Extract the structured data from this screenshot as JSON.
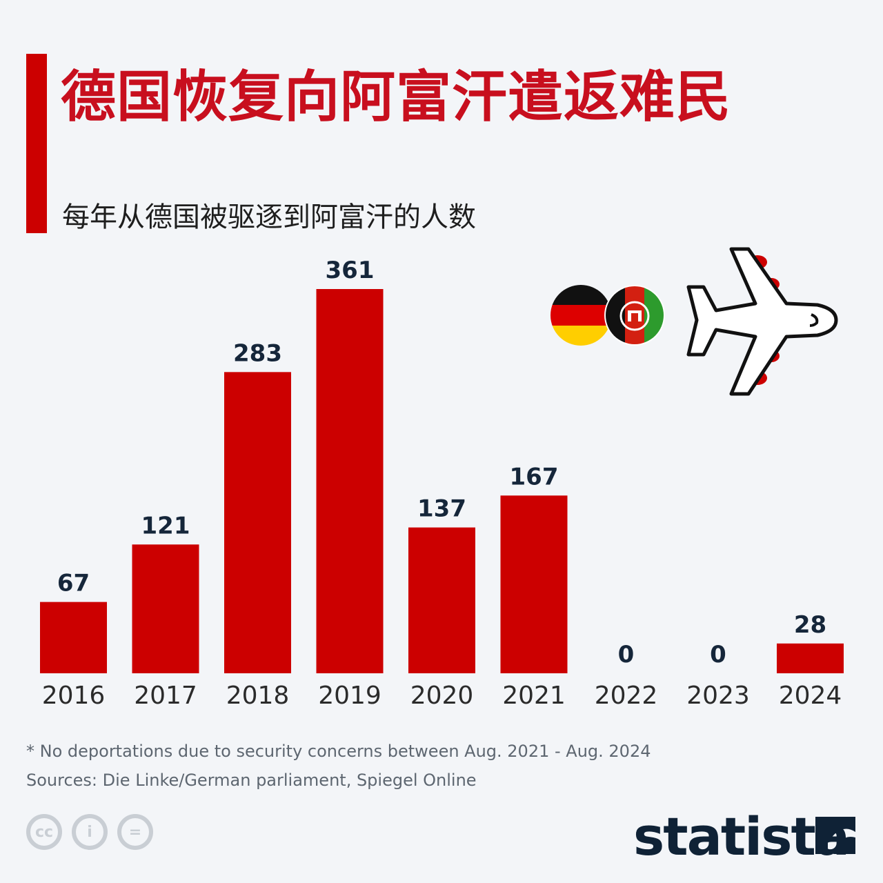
{
  "title": "德国恢复向阿富汗遣返难民",
  "subtitle": "每年从德国被驱逐到阿富汗的人数",
  "chart_data": {
    "type": "bar",
    "title": "德国恢复向阿富汗遣返难民",
    "subtitle": "每年从德国被驱逐到阿富汗的人数",
    "categories": [
      "2016",
      "2017",
      "2018",
      "2019",
      "2020",
      "2021",
      "2022",
      "2023",
      "2024"
    ],
    "values": [
      67,
      121,
      283,
      361,
      137,
      167,
      0,
      0,
      28
    ],
    "ylim": [
      0,
      361
    ],
    "grid": false,
    "xlabel": "",
    "ylabel": ""
  },
  "footnote": "* No deportations due to security concerns between Aug. 2021 - Aug. 2024",
  "sources": "Sources: Die Linke/German parliament, Spiegel Online",
  "brand": "statista",
  "license_icons": [
    "cc",
    "i",
    "="
  ],
  "icons": [
    "germany-flag-icon",
    "afghanistan-flag-icon",
    "airplane-icon",
    "cc-icon",
    "attribution-icon",
    "no-derivatives-icon",
    "statista-logo-icon"
  ],
  "colors": {
    "accent": "#cc0000",
    "title": "#c80f1e",
    "bar": "#cc0000",
    "value_text": "#15263a",
    "background": "#f3f5f8"
  }
}
